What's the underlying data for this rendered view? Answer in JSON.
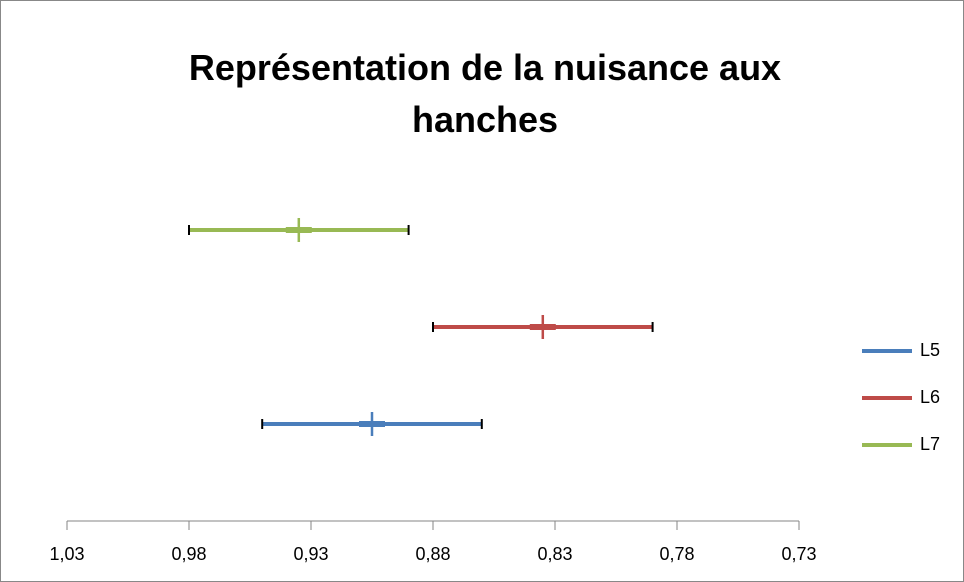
{
  "chart_data": {
    "type": "scatter",
    "title": "Représentation de la nuisance aux hanches",
    "xlim": [
      1.03,
      0.73
    ],
    "xticks": [
      {
        "value": 1.03,
        "label": "1,03"
      },
      {
        "value": 0.98,
        "label": "0,98"
      },
      {
        "value": 0.93,
        "label": "0,93"
      },
      {
        "value": 0.88,
        "label": "0,88"
      },
      {
        "value": 0.83,
        "label": "0,83"
      },
      {
        "value": 0.78,
        "label": "0,78"
      },
      {
        "value": 0.73,
        "label": "0,73"
      }
    ],
    "ylim": [
      0,
      4
    ],
    "legend": "right",
    "series": [
      {
        "name": "L5",
        "color": "#4a7ebb",
        "x": [
          0.905
        ],
        "y": [
          1
        ],
        "xerr": [
          0.045
        ]
      },
      {
        "name": "L6",
        "color": "#be4b48",
        "x": [
          0.835
        ],
        "y": [
          2
        ],
        "xerr": [
          0.045
        ]
      },
      {
        "name": "L7",
        "color": "#98b954",
        "x": [
          0.935
        ],
        "y": [
          3
        ],
        "xerr": [
          0.045
        ]
      }
    ]
  }
}
